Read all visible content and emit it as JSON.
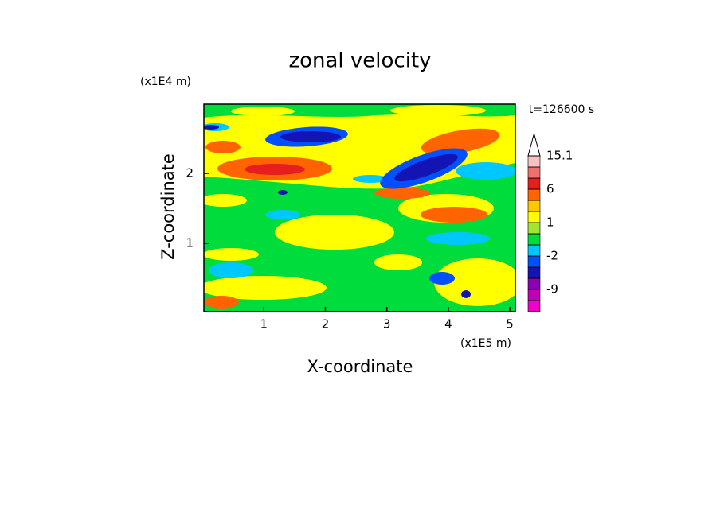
{
  "chart_data": {
    "type": "contour",
    "title": "zonal velocity",
    "time_label": "t=126600 s",
    "x_label": "X-coordinate",
    "y_label": "Z-coordinate",
    "x_unit": "(x1E5 m)",
    "y_unit": "(x1E4 m)",
    "xlim": [
      0.025,
      5.09
    ],
    "ylim": [
      0.02,
      2.99
    ],
    "xticks": [
      1,
      2,
      3,
      4,
      5
    ],
    "yticks": [
      1,
      2
    ],
    "colorbar": {
      "levels": [
        -12,
        -9,
        -6,
        -3,
        -2,
        -1,
        0,
        1,
        2,
        3,
        6,
        9,
        12,
        15.1
      ],
      "ticks": [
        -9,
        -2,
        1,
        6,
        15.1
      ],
      "colors": [
        "#f000c8",
        "#c000b4",
        "#8c00b4",
        "#1414b4",
        "#0050ff",
        "#00c8ff",
        "#00dc3c",
        "#a0e632",
        "#ffff00",
        "#ffc800",
        "#ff6400",
        "#e61e1e",
        "#f07070",
        "#f8c0c0",
        "#ffffff"
      ]
    }
  }
}
